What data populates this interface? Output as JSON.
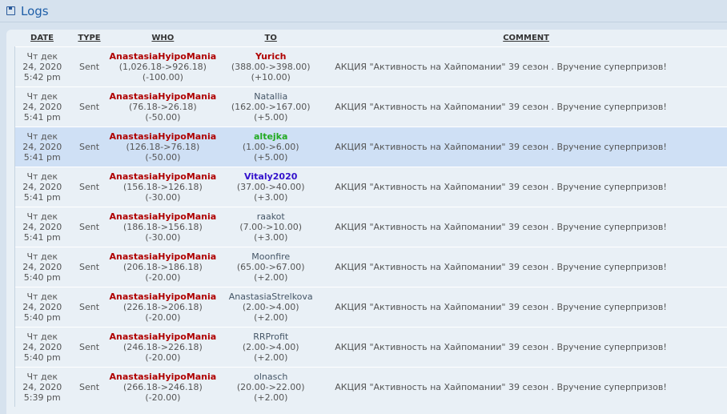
{
  "header": {
    "title": "Logs",
    "icon": "save-icon"
  },
  "columns": [
    "DATE",
    "TYPE",
    "WHO",
    "TO",
    "COMMENT"
  ],
  "rows": [
    {
      "day": "Чт дек",
      "date": "24, 2020",
      "time": "5:42 pm",
      "type": "Sent",
      "who": "AnastasiaHyipoMania",
      "who_bal": "(1,026.18->926.18)",
      "who_delta": "(-100.00)",
      "to": "Yurich",
      "to_color": "#b00000",
      "to_bold": true,
      "to_bal": "(388.00->398.00)",
      "to_delta": "(+10.00)",
      "comment": "АКЦИЯ \"Активность на Хайпомании\" 39 сезон . Вручение суперпризов!"
    },
    {
      "day": "Чт дек",
      "date": "24, 2020",
      "time": "5:41 pm",
      "type": "Sent",
      "who": "AnastasiaHyipoMania",
      "who_bal": "(76.18->26.18)",
      "who_delta": "(-50.00)",
      "to": "Natallia",
      "to_color": "#445566",
      "to_bold": false,
      "to_bal": "(162.00->167.00)",
      "to_delta": "(+5.00)",
      "comment": "АКЦИЯ \"Активность на Хайпомании\" 39 сезон . Вручение суперпризов!"
    },
    {
      "day": "Чт дек",
      "date": "24, 2020",
      "time": "5:41 pm",
      "type": "Sent",
      "who": "AnastasiaHyipoMania",
      "who_bal": "(126.18->76.18)",
      "who_delta": "(-50.00)",
      "to": "altejka",
      "to_color": "#22aa22",
      "to_bold": true,
      "to_bal": "(1.00->6.00)",
      "to_delta": "(+5.00)",
      "comment": "АКЦИЯ \"Активность на Хайпомании\" 39 сезон . Вручение суперпризов!",
      "highlighted": true
    },
    {
      "day": "Чт дек",
      "date": "24, 2020",
      "time": "5:41 pm",
      "type": "Sent",
      "who": "AnastasiaHyipoMania",
      "who_bal": "(156.18->126.18)",
      "who_delta": "(-30.00)",
      "to": "Vitaly2020",
      "to_color": "#3311cc",
      "to_bold": true,
      "to_bal": "(37.00->40.00)",
      "to_delta": "(+3.00)",
      "comment": "АКЦИЯ \"Активность на Хайпомании\" 39 сезон . Вручение суперпризов!"
    },
    {
      "day": "Чт дек",
      "date": "24, 2020",
      "time": "5:41 pm",
      "type": "Sent",
      "who": "AnastasiaHyipoMania",
      "who_bal": "(186.18->156.18)",
      "who_delta": "(-30.00)",
      "to": "raakot",
      "to_color": "#445566",
      "to_bold": false,
      "to_bal": "(7.00->10.00)",
      "to_delta": "(+3.00)",
      "comment": "АКЦИЯ \"Активность на Хайпомании\" 39 сезон . Вручение суперпризов!"
    },
    {
      "day": "Чт дек",
      "date": "24, 2020",
      "time": "5:40 pm",
      "type": "Sent",
      "who": "AnastasiaHyipoMania",
      "who_bal": "(206.18->186.18)",
      "who_delta": "(-20.00)",
      "to": "Moonfire",
      "to_color": "#445566",
      "to_bold": false,
      "to_bal": "(65.00->67.00)",
      "to_delta": "(+2.00)",
      "comment": "АКЦИЯ \"Активность на Хайпомании\" 39 сезон . Вручение суперпризов!"
    },
    {
      "day": "Чт дек",
      "date": "24, 2020",
      "time": "5:40 pm",
      "type": "Sent",
      "who": "AnastasiaHyipoMania",
      "who_bal": "(226.18->206.18)",
      "who_delta": "(-20.00)",
      "to": "AnastasiaStrelkova",
      "to_color": "#445566",
      "to_bold": false,
      "to_bal": "(2.00->4.00)",
      "to_delta": "(+2.00)",
      "comment": "АКЦИЯ \"Активность на Хайпомании\" 39 сезон . Вручение суперпризов!"
    },
    {
      "day": "Чт дек",
      "date": "24, 2020",
      "time": "5:40 pm",
      "type": "Sent",
      "who": "AnastasiaHyipoMania",
      "who_bal": "(246.18->226.18)",
      "who_delta": "(-20.00)",
      "to": "RRProfit",
      "to_color": "#445566",
      "to_bold": false,
      "to_bal": "(2.00->4.00)",
      "to_delta": "(+2.00)",
      "comment": "АКЦИЯ \"Активность на Хайпомании\" 39 сезон . Вручение суперпризов!"
    },
    {
      "day": "Чт дек",
      "date": "24, 2020",
      "time": "5:39 pm",
      "type": "Sent",
      "who": "AnastasiaHyipoMania",
      "who_bal": "(266.18->246.18)",
      "who_delta": "(-20.00)",
      "to": "olnasch",
      "to_color": "#445566",
      "to_bold": false,
      "to_bal": "(20.00->22.00)",
      "to_delta": "(+2.00)",
      "comment": "АКЦИЯ \"Активность на Хайпомании\" 39 сезон . Вручение суперпризов!"
    }
  ]
}
